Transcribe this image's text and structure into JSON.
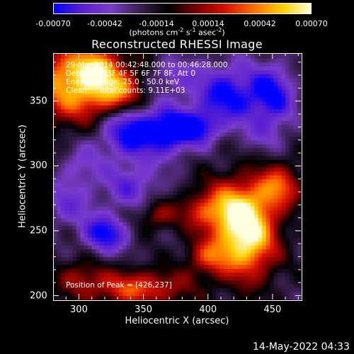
{
  "colorbar": {
    "ticks": [
      "-0.00070",
      "-0.00042",
      "-0.00014",
      "0.00014",
      "0.00042",
      "0.00070"
    ],
    "units_main": "(photons cm",
    "units_sup1": "-2",
    "units_mid": " s",
    "units_sup2": "-1",
    "units_end": " asec",
    "units_sup3": "-2",
    "units_close": ")"
  },
  "title": "Reconstructed RHESSI Image",
  "info": {
    "line1": "29-Mar-2014 00:42:48.000 to 00:46:28.000",
    "line2": "Detectors: 3F 4F 5F 6F 7F 8F, Att 0",
    "line3": "Energy Range: 25.0 - 50.0 keV",
    "line4": "Clean     Total counts: 9.11E+03",
    "peak": "Position of Peak = [426,237]"
  },
  "footer": {
    "timestamp": "14-May-2022 04:33"
  },
  "colors": {
    "cmap": [
      "#0000ff",
      "#5a1fd0",
      "#7a3ccc",
      "#3a2050",
      "#000000",
      "#7a0000",
      "#d81000",
      "#ff7000",
      "#ffd000",
      "#ffffe0"
    ]
  },
  "chart_data": {
    "type": "heatmap",
    "title": "Reconstructed RHESSI Image",
    "xlabel": "Heliocentric X (arcsec)",
    "ylabel": "Heliocentric Y (arcsec)",
    "xlim": [
      280,
      472
    ],
    "ylim": [
      197,
      387
    ],
    "xticks": [
      300,
      350,
      400,
      450
    ],
    "yticks": [
      200,
      250,
      300,
      350
    ],
    "colorbar_range": [
      -0.0007,
      0.0007
    ],
    "peak_position": [
      426,
      237
    ],
    "blobs": [
      {
        "x": 300,
        "y": 365,
        "sx": 28,
        "sy": 22,
        "a": 0.00075
      },
      {
        "x": 330,
        "y": 358,
        "sx": 14,
        "sy": 10,
        "a": 0.00035
      },
      {
        "x": 312,
        "y": 375,
        "sx": 10,
        "sy": 8,
        "a": 0.0003
      },
      {
        "x": 430,
        "y": 245,
        "sx": 16,
        "sy": 22,
        "a": 0.00085
      },
      {
        "x": 420,
        "y": 270,
        "sx": 18,
        "sy": 16,
        "a": 0.00045
      },
      {
        "x": 395,
        "y": 265,
        "sx": 14,
        "sy": 10,
        "a": 0.0003
      },
      {
        "x": 455,
        "y": 285,
        "sx": 12,
        "sy": 12,
        "a": 0.0005
      },
      {
        "x": 360,
        "y": 262,
        "sx": 10,
        "sy": 8,
        "a": 0.0003
      },
      {
        "x": 400,
        "y": 230,
        "sx": 12,
        "sy": 10,
        "a": 0.0004
      },
      {
        "x": 345,
        "y": 206,
        "sx": 28,
        "sy": 10,
        "a": 0.0005
      },
      {
        "x": 300,
        "y": 215,
        "sx": 12,
        "sy": 10,
        "a": 0.00025
      },
      {
        "x": 445,
        "y": 325,
        "sx": 12,
        "sy": 10,
        "a": -0.00015
      },
      {
        "x": 415,
        "y": 355,
        "sx": 18,
        "sy": 16,
        "a": -0.0005
      },
      {
        "x": 375,
        "y": 328,
        "sx": 12,
        "sy": 12,
        "a": -0.00045
      },
      {
        "x": 343,
        "y": 327,
        "sx": 20,
        "sy": 14,
        "a": -0.0006
      },
      {
        "x": 395,
        "y": 330,
        "sx": 10,
        "sy": 8,
        "a": -0.00035
      },
      {
        "x": 450,
        "y": 355,
        "sx": 12,
        "sy": 16,
        "a": -0.00045
      },
      {
        "x": 320,
        "y": 248,
        "sx": 12,
        "sy": 10,
        "a": -0.0005
      },
      {
        "x": 340,
        "y": 285,
        "sx": 16,
        "sy": 12,
        "a": -0.0003
      },
      {
        "x": 290,
        "y": 270,
        "sx": 14,
        "sy": 12,
        "a": -0.00025
      },
      {
        "x": 300,
        "y": 300,
        "sx": 12,
        "sy": 12,
        "a": -0.0002
      },
      {
        "x": 370,
        "y": 370,
        "sx": 14,
        "sy": 10,
        "a": -0.00025
      }
    ],
    "baseline": -0.0002
  }
}
